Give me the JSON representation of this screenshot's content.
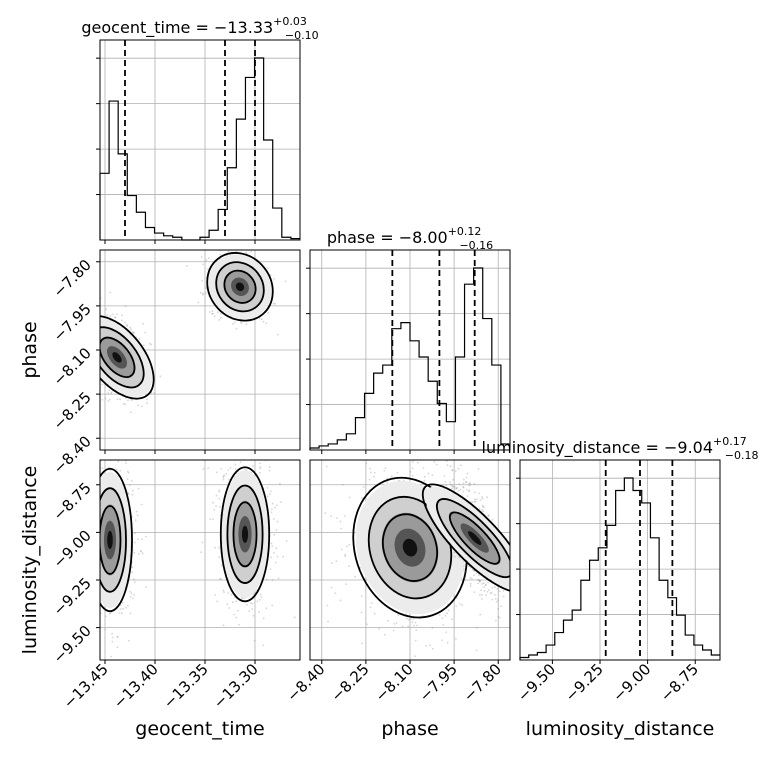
{
  "chart_data": {
    "type": "corner",
    "parameters": [
      {
        "key": "geocent_time",
        "label": "geocent_time",
        "title_main": "geocent_time = −13.33",
        "title_sup": "+0.03",
        "title_sub": "−0.10",
        "range": [
          -13.455,
          -13.255
        ],
        "ticks": [
          -13.45,
          -13.4,
          -13.35,
          -13.3
        ],
        "tick_labels": [
          "−13.45",
          "−13.40",
          "−13.35",
          "−13.30"
        ],
        "quantiles": [
          -13.43,
          -13.33,
          -13.3
        ]
      },
      {
        "key": "phase",
        "label": "phase",
        "title_main": "phase = −8.00",
        "title_sup": "+0.12",
        "title_sub": "−0.16",
        "range": [
          -8.44,
          -7.76
        ],
        "ticks": [
          -8.4,
          -8.25,
          -8.1,
          -7.95,
          -7.8
        ],
        "tick_labels": [
          "−8.40",
          "−8.25",
          "−8.10",
          "−7.95",
          "−7.80"
        ],
        "quantiles": [
          -8.16,
          -8.0,
          -7.88
        ]
      },
      {
        "key": "luminosity_distance",
        "label": "luminosity_distance",
        "title_main": "luminosity_distance = −9.04",
        "title_sup": "+0.17",
        "title_sub": "−0.18",
        "range": [
          -9.67,
          -8.62
        ],
        "ticks": [
          -9.5,
          -9.25,
          -9.0,
          -8.75
        ],
        "tick_labels": [
          "−9.50",
          "−9.25",
          "−9.00",
          "−8.75"
        ],
        "quantiles": [
          -9.22,
          -9.04,
          -8.87
        ]
      }
    ],
    "histograms": {
      "geocent_time": [
        0.48,
        1.0,
        0.62,
        0.32,
        0.2,
        0.09,
        0.05,
        0.03,
        0.02,
        0.0,
        0.0,
        0.02,
        0.07,
        0.22,
        0.52,
        0.87,
        1.17,
        1.31,
        0.72,
        0.23,
        0.02,
        0.01
      ],
      "phase": [
        0.01,
        0.02,
        0.03,
        0.05,
        0.08,
        0.16,
        0.28,
        0.38,
        0.42,
        0.6,
        0.63,
        0.54,
        0.46,
        0.34,
        0.23,
        0.14,
        0.46,
        0.82,
        0.9,
        0.65,
        0.42,
        0.03
      ],
      "luminosity_distance": [
        0.01,
        0.02,
        0.03,
        0.06,
        0.11,
        0.16,
        0.2,
        0.32,
        0.4,
        0.45,
        0.54,
        0.68,
        0.73,
        0.68,
        0.63,
        0.49,
        0.32,
        0.25,
        0.18,
        0.1,
        0.06,
        0.04,
        0.02
      ]
    },
    "joint_modes": [
      {
        "x": "geocent_time",
        "y": "phase",
        "modes": [
          {
            "cx": -13.438,
            "cy": -8.125,
            "sx": 0.012,
            "sy": 0.075,
            "rot": 0.75
          },
          {
            "cx": -13.315,
            "cy": -7.885,
            "sx": 0.014,
            "sy": 0.055,
            "rot": 0.75
          }
        ]
      },
      {
        "x": "geocent_time",
        "y": "luminosity_distance",
        "modes": [
          {
            "cx": -13.445,
            "cy": -9.04,
            "sx": 0.01,
            "sy": 0.17,
            "rot": 0.0
          },
          {
            "cx": -13.31,
            "cy": -9.01,
            "sx": 0.011,
            "sy": 0.16,
            "rot": 0.0
          }
        ]
      },
      {
        "x": "phase",
        "y": "luminosity_distance",
        "modes": [
          {
            "cx": -8.1,
            "cy": -9.08,
            "sx": 0.085,
            "sy": 0.17,
            "rot": 0.35
          },
          {
            "cx": -7.88,
            "cy": -9.03,
            "sx": 0.035,
            "sy": 0.17,
            "rot": 0.85
          }
        ]
      }
    ],
    "xlabel": "",
    "ylabel": "",
    "grid": true
  }
}
